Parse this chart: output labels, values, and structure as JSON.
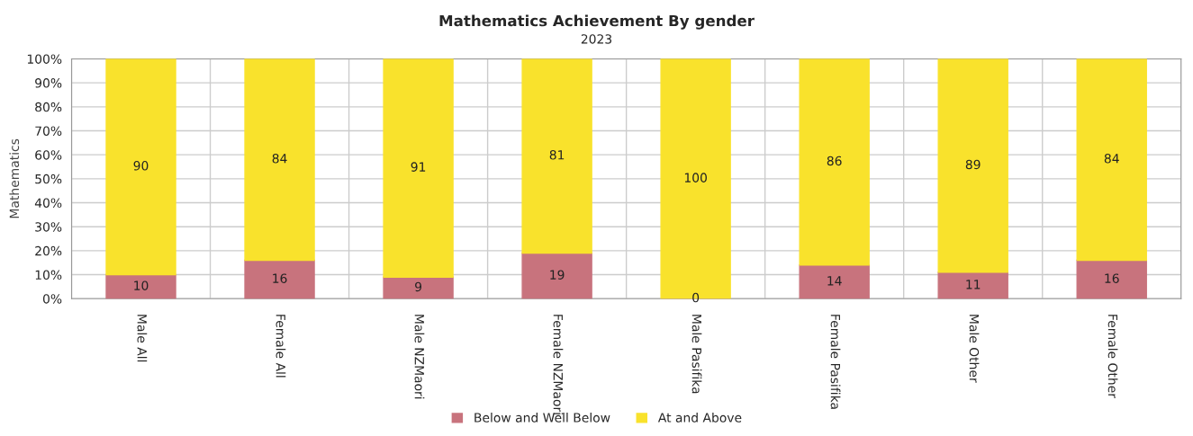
{
  "chart_data": {
    "type": "bar",
    "title": "Mathematics Achievement By gender",
    "subtitle": "2023",
    "ylabel": "Mathematics",
    "categories": [
      "Male All",
      "Female All",
      "Male NZMaori",
      "Female NZMaori",
      "Male Pasifika",
      "Female Pasifika",
      "Male Other",
      "Female Other"
    ],
    "series": [
      {
        "name": "Below and Well Below",
        "color": "#c8737d",
        "values": [
          10,
          16,
          9,
          19,
          0,
          14,
          11,
          16
        ]
      },
      {
        "name": "At and Above",
        "color": "#f9e22c",
        "values": [
          90,
          84,
          91,
          81,
          100,
          86,
          89,
          84
        ]
      }
    ],
    "stacked": true,
    "data_labels": true,
    "ylim": [
      0,
      100
    ],
    "yticks": [
      {
        "value": 0,
        "label": "0%"
      },
      {
        "value": 10,
        "label": "10%"
      },
      {
        "value": 20,
        "label": "20%"
      },
      {
        "value": 30,
        "label": "30%"
      },
      {
        "value": 40,
        "label": "40%"
      },
      {
        "value": 50,
        "label": "50%"
      },
      {
        "value": 60,
        "label": "60%"
      },
      {
        "value": 70,
        "label": "70%"
      },
      {
        "value": 80,
        "label": "80%"
      },
      {
        "value": 90,
        "label": "90%"
      },
      {
        "value": 100,
        "label": "100%"
      }
    ],
    "grid": true,
    "legend": "bottom"
  }
}
